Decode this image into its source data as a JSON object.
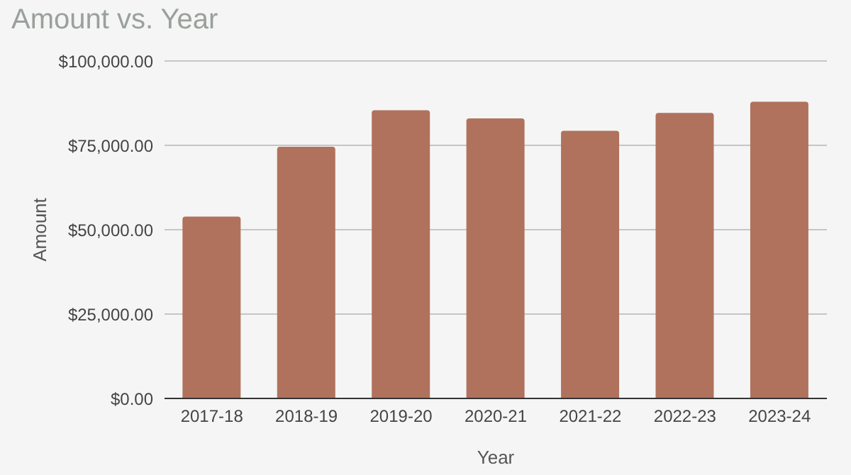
{
  "chart_data": {
    "type": "bar",
    "title": "Amount vs. Year",
    "xlabel": "Year",
    "ylabel": "Amount",
    "categories": [
      "2017-18",
      "2018-19",
      "2019-20",
      "2020-21",
      "2021-22",
      "2022-23",
      "2023-24"
    ],
    "values": [
      53900,
      74600,
      85400,
      83000,
      79300,
      84600,
      87900
    ],
    "color": "#b0725c",
    "ylim": [
      0,
      100000
    ],
    "yticks": [
      {
        "value": 0,
        "label": "$0.00"
      },
      {
        "value": 25000,
        "label": "$25,000.00"
      },
      {
        "value": 50000,
        "label": "$50,000.00"
      },
      {
        "value": 75000,
        "label": "$75,000.00"
      },
      {
        "value": 100000,
        "label": "$100,000.00"
      }
    ],
    "grid": "y"
  }
}
